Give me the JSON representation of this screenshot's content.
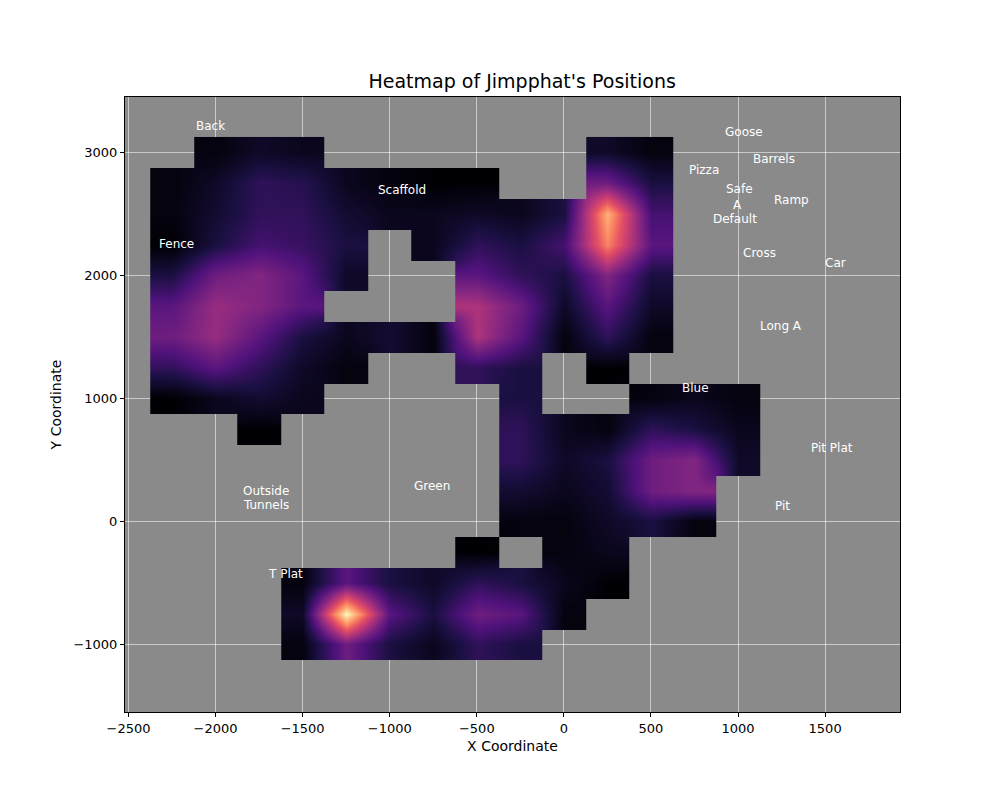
{
  "chart_data": {
    "type": "heatmap",
    "title": "Heatmap of Jimpphat's Positions",
    "x_label": "X Coordinate",
    "y_label": "Y Coordinate",
    "x": [
      -2250,
      -2000,
      -1750,
      -1500,
      -1250,
      -1000,
      -750,
      -500,
      -250,
      0,
      250,
      500,
      750,
      1000,
      1250
    ],
    "y": [
      -1000,
      -750,
      -500,
      -250,
      0,
      250,
      500,
      750,
      1000,
      1250,
      1500,
      1750,
      2000,
      2250,
      2500,
      2750,
      3000
    ],
    "z": [
      [
        null,
        null,
        null,
        0.05,
        0.35,
        0.15,
        0.08,
        0.2,
        0.15,
        null,
        null,
        null,
        null,
        null,
        null
      ],
      [
        null,
        null,
        null,
        0.1,
        1.0,
        0.3,
        0.15,
        0.35,
        0.3,
        0.05,
        null,
        null,
        null,
        null,
        null
      ],
      [
        null,
        null,
        null,
        0.05,
        0.3,
        0.15,
        0.1,
        0.2,
        0.15,
        0.08,
        0.03,
        null,
        null,
        null,
        null
      ],
      [
        null,
        null,
        null,
        null,
        null,
        null,
        null,
        0.03,
        null,
        0.05,
        0.08,
        null,
        null,
        null,
        null
      ],
      [
        null,
        null,
        null,
        null,
        null,
        null,
        null,
        null,
        0.05,
        0.05,
        0.1,
        0.15,
        0.05,
        null,
        null
      ],
      [
        null,
        null,
        null,
        null,
        null,
        null,
        null,
        null,
        0.12,
        0.08,
        0.12,
        0.35,
        0.4,
        null,
        null
      ],
      [
        null,
        null,
        null,
        null,
        null,
        null,
        null,
        null,
        0.2,
        0.1,
        0.15,
        0.35,
        0.4,
        0.1,
        null
      ],
      [
        null,
        null,
        0.03,
        null,
        null,
        null,
        null,
        null,
        0.2,
        0.08,
        0.05,
        0.2,
        0.15,
        0.08,
        null
      ],
      [
        0.03,
        0.08,
        0.12,
        0.08,
        null,
        null,
        null,
        null,
        0.15,
        null,
        null,
        0.05,
        0.08,
        0.05,
        null
      ],
      [
        0.2,
        0.3,
        0.2,
        0.1,
        0.05,
        null,
        null,
        0.2,
        0.15,
        null,
        0.03,
        null,
        null,
        null,
        null
      ],
      [
        0.35,
        0.45,
        0.3,
        0.15,
        0.08,
        0.12,
        0.05,
        0.5,
        0.3,
        0.05,
        0.2,
        0.05,
        null,
        null,
        null
      ],
      [
        0.3,
        0.45,
        0.4,
        0.3,
        null,
        null,
        null,
        0.5,
        0.35,
        0.1,
        0.3,
        0.1,
        null,
        null,
        null
      ],
      [
        0.15,
        0.35,
        0.4,
        0.3,
        0.1,
        null,
        null,
        0.3,
        0.2,
        0.15,
        0.4,
        0.15,
        null,
        null,
        null
      ],
      [
        0.03,
        0.15,
        0.25,
        0.22,
        0.15,
        null,
        0.08,
        0.2,
        0.15,
        0.25,
        0.75,
        0.3,
        null,
        null,
        null
      ],
      [
        0.05,
        0.12,
        0.2,
        0.2,
        0.12,
        0.08,
        0.08,
        0.1,
        0.08,
        0.15,
        0.85,
        0.25,
        null,
        null,
        null
      ],
      [
        0.05,
        0.1,
        0.2,
        0.18,
        0.08,
        0.05,
        0.03,
        0.03,
        null,
        null,
        0.35,
        0.15,
        null,
        null,
        null
      ],
      [
        null,
        0.05,
        0.1,
        0.08,
        null,
        null,
        null,
        null,
        null,
        null,
        0.1,
        0.05,
        null,
        null,
        null
      ]
    ],
    "xlim": [
      -2520,
      1930
    ],
    "ylim": [
      -1550,
      3450
    ],
    "xticks": [
      -2500,
      -2000,
      -1500,
      -1000,
      -500,
      0,
      500,
      1000,
      1500
    ],
    "yticks": [
      -1000,
      0,
      1000,
      2000,
      3000
    ],
    "grid": true,
    "annotations": [
      {
        "text": "Back",
        "x": -2031,
        "y": 3218
      },
      {
        "text": "Scaffold",
        "x": -932,
        "y": 2693
      },
      {
        "text": "Fence",
        "x": -2222,
        "y": 2257
      },
      {
        "text": "Goose",
        "x": 1036,
        "y": 3162
      },
      {
        "text": "Barrels",
        "x": 1209,
        "y": 2943
      },
      {
        "text": "Pizza",
        "x": 805,
        "y": 2855
      },
      {
        "text": "Safe",
        "x": 1007,
        "y": 2701
      },
      {
        "text": "Ramp",
        "x": 1308,
        "y": 2612
      },
      {
        "text": "A",
        "x": 995,
        "y": 2572
      },
      {
        "text": "Default",
        "x": 984,
        "y": 2459
      },
      {
        "text": "Cross",
        "x": 1123,
        "y": 2184
      },
      {
        "text": "Car",
        "x": 1562,
        "y": 2103
      },
      {
        "text": "Long A",
        "x": 1244,
        "y": 1586
      },
      {
        "text": "Blue",
        "x": 758,
        "y": 1085
      },
      {
        "text": "Pit Plat",
        "x": 1539,
        "y": 600
      },
      {
        "text": "Pit",
        "x": 1256,
        "y": 123
      },
      {
        "text": "Outside",
        "x": -1713,
        "y": 244
      },
      {
        "text": "Tunnels",
        "x": -1713,
        "y": 131
      },
      {
        "text": "Green",
        "x": -758,
        "y": 285
      },
      {
        "text": "T Plat",
        "x": -1597,
        "y": -426
      }
    ]
  }
}
